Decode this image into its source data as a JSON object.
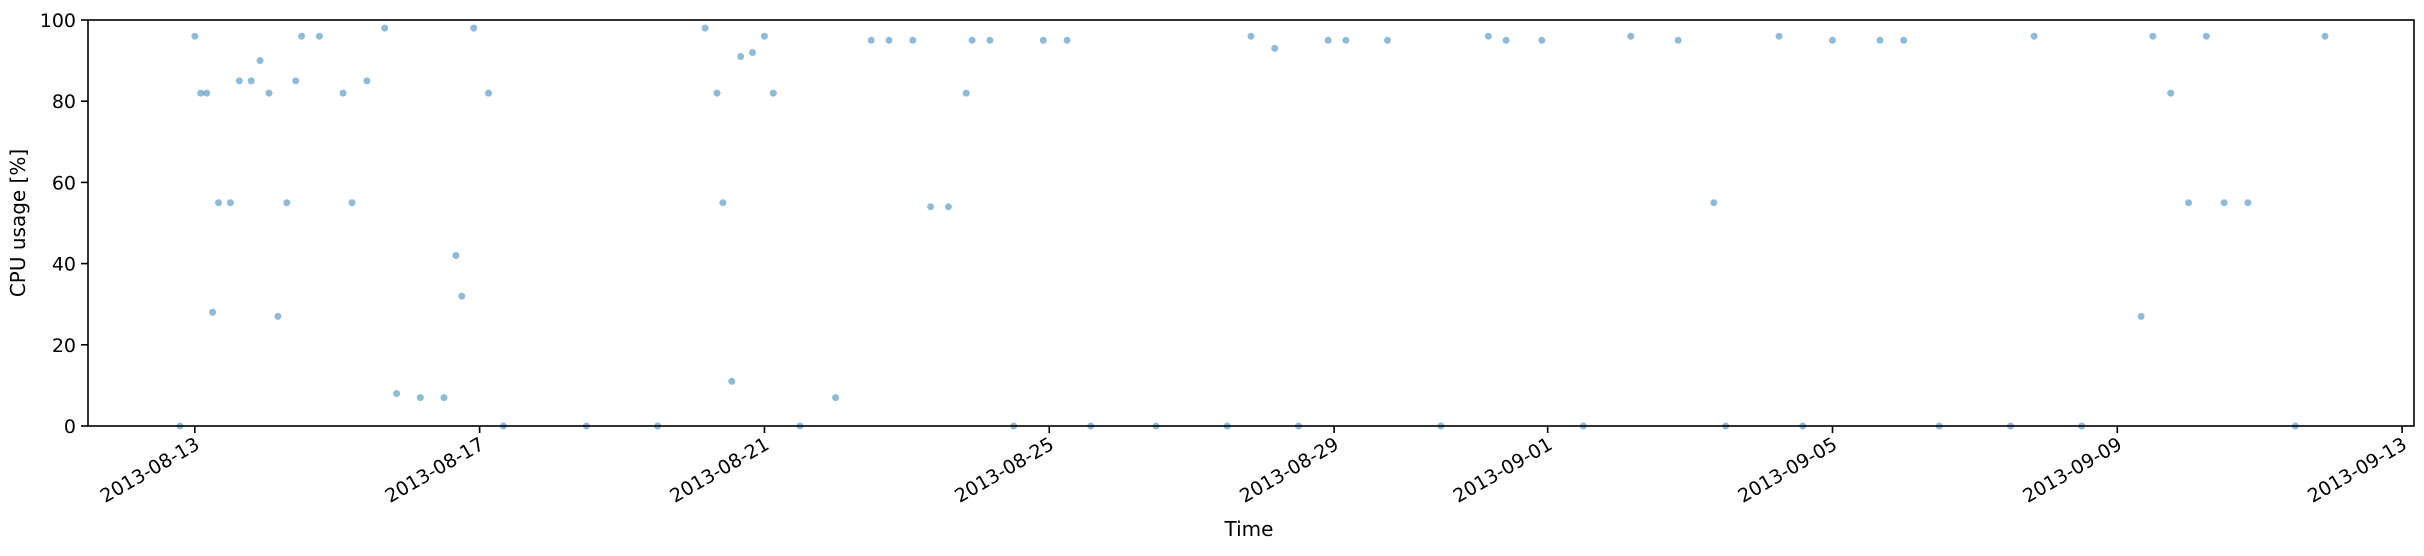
{
  "chart_data": {
    "type": "scatter",
    "xlabel": "Time",
    "ylabel": "CPU usage [%]",
    "xlim": [
      "2013-08-11T12:00",
      "2013-09-13T04:00"
    ],
    "ylim": [
      0,
      100
    ],
    "x_ticks": [
      "2013-08-13",
      "2013-08-17",
      "2013-08-21",
      "2013-08-25",
      "2013-08-29",
      "2013-09-01",
      "2013-09-05",
      "2013-09-09",
      "2013-09-13"
    ],
    "y_ticks": [
      0,
      20,
      40,
      60,
      80,
      100
    ],
    "grid": false,
    "legend": "none",
    "color": "#1f77b4",
    "marker_alpha": 0.5,
    "series": [
      {
        "name": "",
        "points": [
          [
            "2013-08-12T19:00",
            0
          ],
          [
            "2013-08-13T00:00",
            96
          ],
          [
            "2013-08-13T02:00",
            82
          ],
          [
            "2013-08-13T04:00",
            82
          ],
          [
            "2013-08-13T06:00",
            28
          ],
          [
            "2013-08-13T08:00",
            55
          ],
          [
            "2013-08-13T12:00",
            55
          ],
          [
            "2013-08-13T15:00",
            85
          ],
          [
            "2013-08-13T19:00",
            85
          ],
          [
            "2013-08-13T22:00",
            90
          ],
          [
            "2013-08-14T01:00",
            82
          ],
          [
            "2013-08-14T04:00",
            27
          ],
          [
            "2013-08-14T07:00",
            55
          ],
          [
            "2013-08-14T10:00",
            85
          ],
          [
            "2013-08-14T12:00",
            96
          ],
          [
            "2013-08-14T18:00",
            96
          ],
          [
            "2013-08-15T02:00",
            82
          ],
          [
            "2013-08-15T05:00",
            55
          ],
          [
            "2013-08-15T10:00",
            85
          ],
          [
            "2013-08-15T16:00",
            98
          ],
          [
            "2013-08-15T20:00",
            8
          ],
          [
            "2013-08-16T04:00",
            7
          ],
          [
            "2013-08-16T12:00",
            7
          ],
          [
            "2013-08-16T16:00",
            42
          ],
          [
            "2013-08-16T18:00",
            32
          ],
          [
            "2013-08-16T22:00",
            98
          ],
          [
            "2013-08-17T03:00",
            82
          ],
          [
            "2013-08-17T08:00",
            0
          ],
          [
            "2013-08-18T12:00",
            0
          ],
          [
            "2013-08-19T12:00",
            0
          ],
          [
            "2013-08-20T04:00",
            98
          ],
          [
            "2013-08-20T08:00",
            82
          ],
          [
            "2013-08-20T10:00",
            55
          ],
          [
            "2013-08-20T13:00",
            11
          ],
          [
            "2013-08-20T16:00",
            91
          ],
          [
            "2013-08-20T20:00",
            92
          ],
          [
            "2013-08-21T00:00",
            96
          ],
          [
            "2013-08-21T03:00",
            82
          ],
          [
            "2013-08-21T12:00",
            0
          ],
          [
            "2013-08-22T00:00",
            7
          ],
          [
            "2013-08-22T12:00",
            95
          ],
          [
            "2013-08-22T18:00",
            95
          ],
          [
            "2013-08-23T02:00",
            95
          ],
          [
            "2013-08-23T08:00",
            54
          ],
          [
            "2013-08-23T14:00",
            54
          ],
          [
            "2013-08-23T20:00",
            82
          ],
          [
            "2013-08-23T22:00",
            95
          ],
          [
            "2013-08-24T04:00",
            95
          ],
          [
            "2013-08-24T12:00",
            0
          ],
          [
            "2013-08-24T22:00",
            95
          ],
          [
            "2013-08-25T06:00",
            95
          ],
          [
            "2013-08-25T14:00",
            0
          ],
          [
            "2013-08-26T12:00",
            0
          ],
          [
            "2013-08-27T12:00",
            0
          ],
          [
            "2013-08-27T20:00",
            96
          ],
          [
            "2013-08-28T04:00",
            93
          ],
          [
            "2013-08-28T12:00",
            0
          ],
          [
            "2013-08-28T22:00",
            95
          ],
          [
            "2013-08-29T04:00",
            95
          ],
          [
            "2013-08-29T18:00",
            95
          ],
          [
            "2013-08-30T12:00",
            0
          ],
          [
            "2013-08-31T04:00",
            96
          ],
          [
            "2013-08-31T10:00",
            95
          ],
          [
            "2013-08-31T22:00",
            95
          ],
          [
            "2013-09-01T12:00",
            0
          ],
          [
            "2013-09-02T04:00",
            96
          ],
          [
            "2013-09-02T20:00",
            95
          ],
          [
            "2013-09-03T08:00",
            55
          ],
          [
            "2013-09-03T12:00",
            0
          ],
          [
            "2013-09-04T06:00",
            96
          ],
          [
            "2013-09-04T14:00",
            0
          ],
          [
            "2013-09-05T00:00",
            95
          ],
          [
            "2013-09-05T16:00",
            95
          ],
          [
            "2013-09-06T00:00",
            95
          ],
          [
            "2013-09-06T12:00",
            0
          ],
          [
            "2013-09-07T12:00",
            0
          ],
          [
            "2013-09-07T20:00",
            96
          ],
          [
            "2013-09-08T12:00",
            0
          ],
          [
            "2013-09-09T08:00",
            27
          ],
          [
            "2013-09-09T12:00",
            96
          ],
          [
            "2013-09-09T18:00",
            82
          ],
          [
            "2013-09-10T00:00",
            55
          ],
          [
            "2013-09-10T06:00",
            96
          ],
          [
            "2013-09-10T12:00",
            55
          ],
          [
            "2013-09-10T20:00",
            55
          ],
          [
            "2013-09-11T12:00",
            0
          ],
          [
            "2013-09-11T22:00",
            96
          ]
        ]
      }
    ]
  }
}
